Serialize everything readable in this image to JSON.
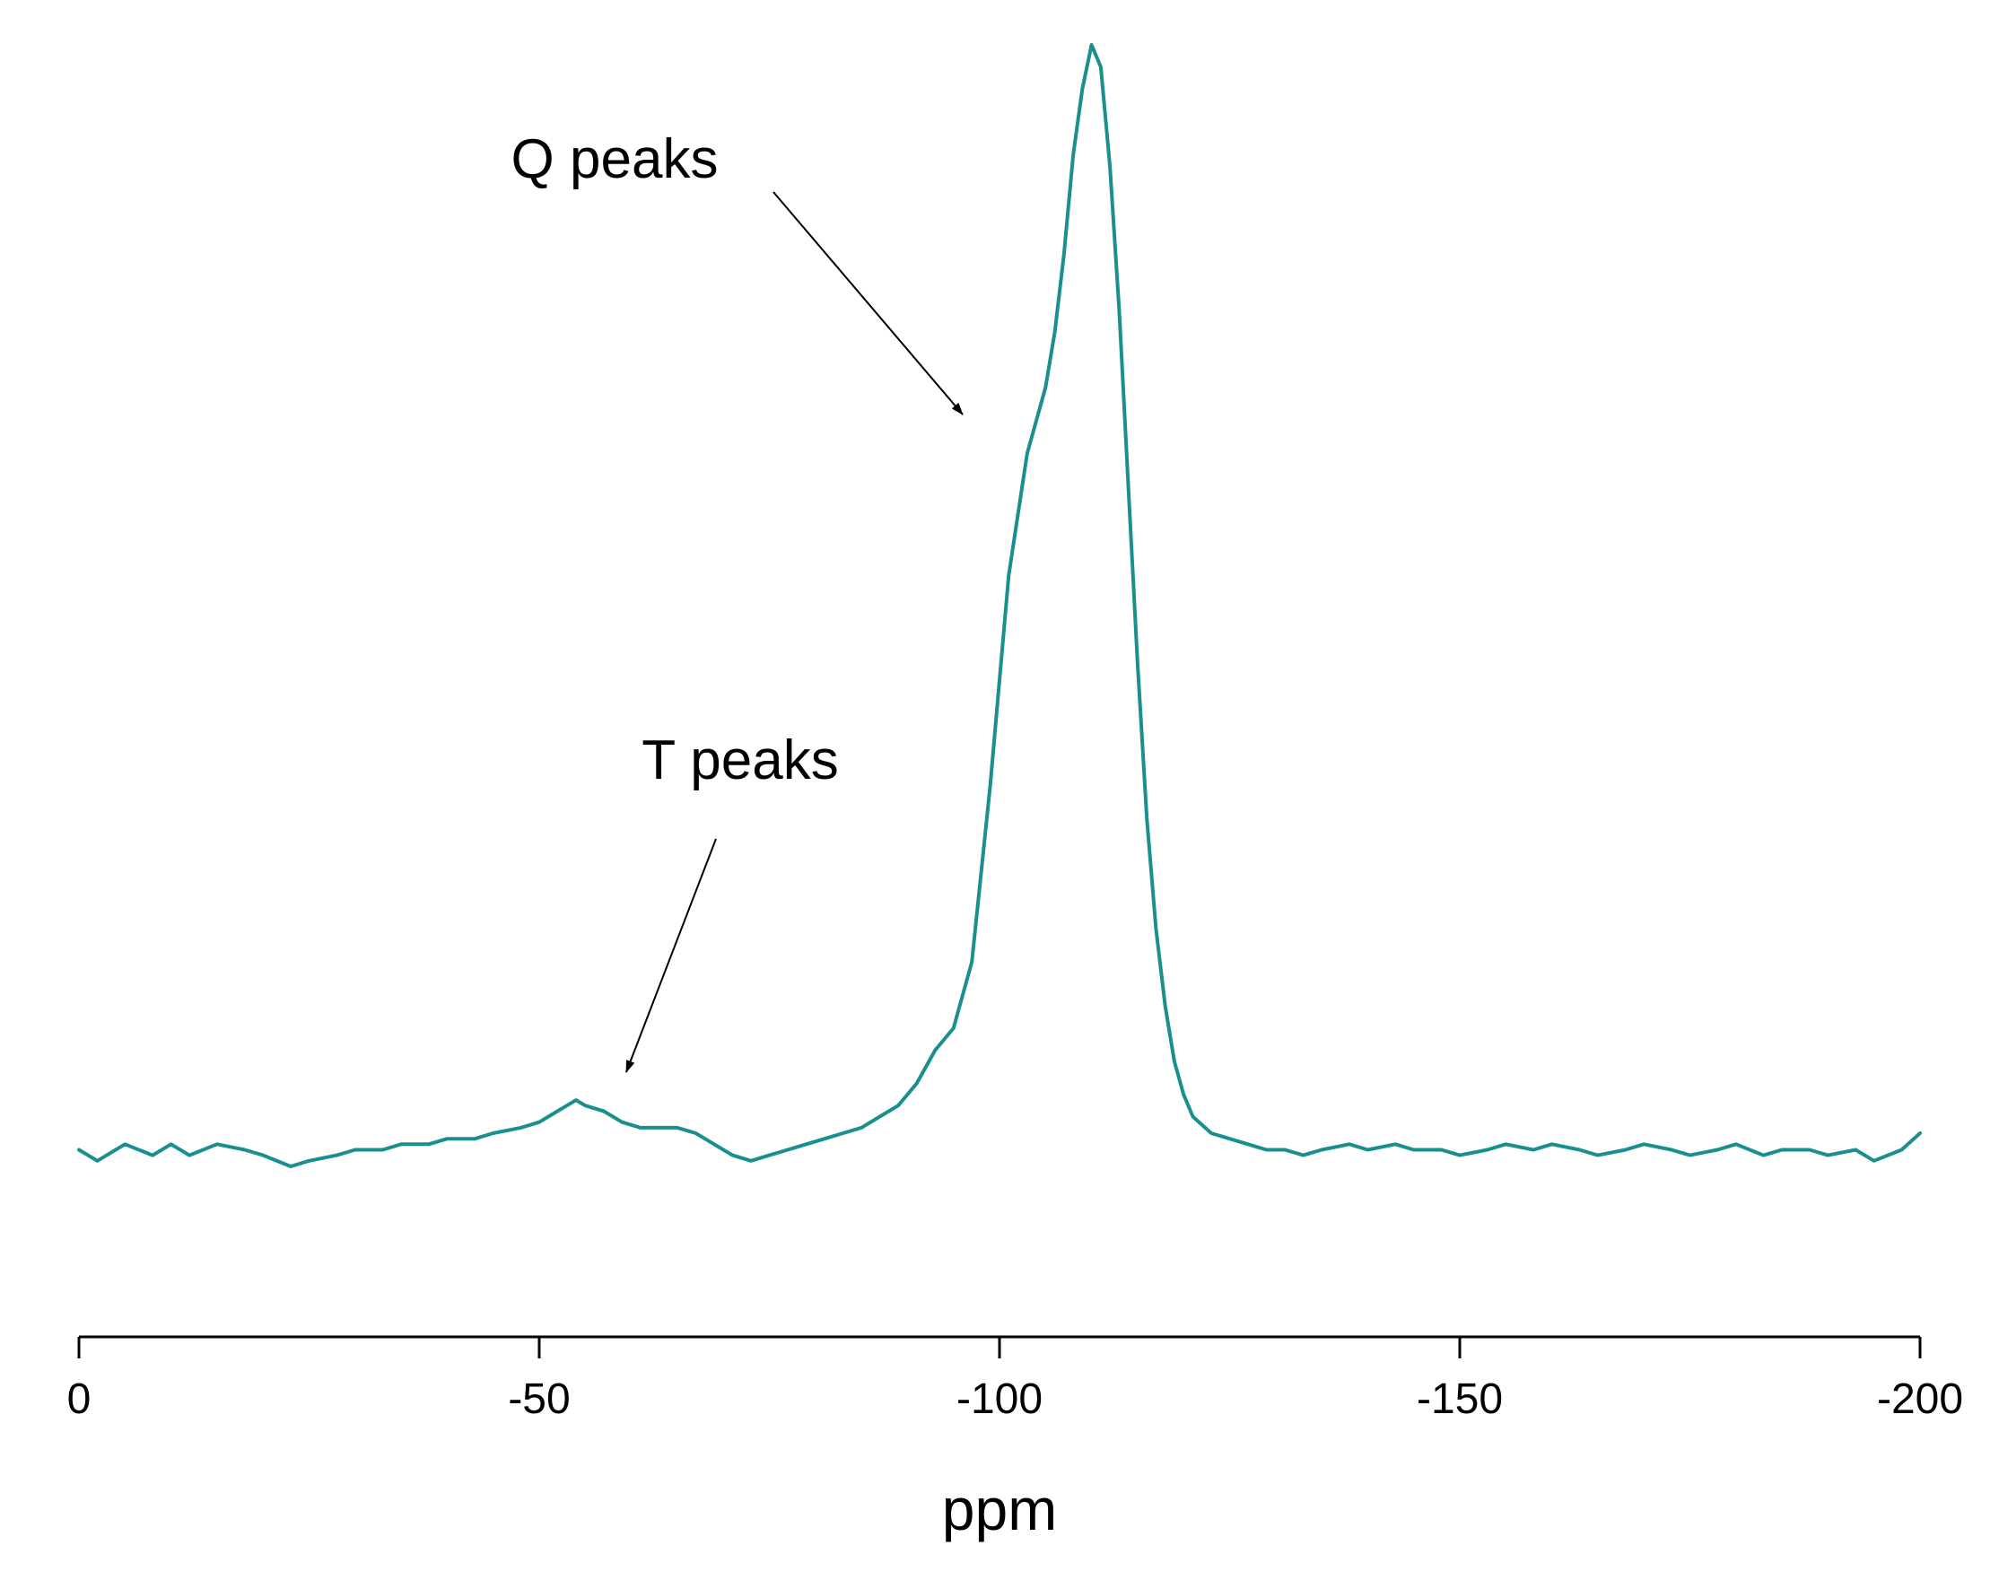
{
  "chart_data": {
    "type": "line",
    "title": "",
    "xlabel": "ppm",
    "ylabel": "",
    "xlim": [
      0,
      -200
    ],
    "x_reversed": true,
    "ylim": [
      -0.08,
      1.0
    ],
    "grid": false,
    "x_ticks": [
      0,
      -50,
      -100,
      -150,
      -200
    ],
    "x_tick_labels": [
      "0",
      "-50",
      "-100",
      "-150",
      "-200"
    ],
    "y_axis_shown": false,
    "series": [
      {
        "color": "#1a8f8f",
        "x": [
          0,
          -2,
          -5,
          -8,
          -10,
          -12,
          -15,
          -18,
          -20,
          -23,
          -25,
          -28,
          -30,
          -33,
          -35,
          -38,
          -40,
          -43,
          -45,
          -48,
          -50,
          -52,
          -54,
          -55,
          -57,
          -59,
          -61,
          -63,
          -65,
          -67,
          -69,
          -71,
          -73,
          -75,
          -77,
          -79,
          -81,
          -83,
          -85,
          -87,
          -89,
          -91,
          -93,
          -95,
          -97,
          -99,
          -101,
          -103,
          -105,
          -106,
          -107,
          -108,
          -109,
          -110,
          -111,
          -112,
          -113,
          -114,
          -115,
          -116,
          -117,
          -118,
          -119,
          -120,
          -121,
          -123,
          -125,
          -127,
          -129,
          -131,
          -133,
          -135,
          -138,
          -140,
          -143,
          -145,
          -148,
          -150,
          -153,
          -155,
          -158,
          -160,
          -163,
          -165,
          -168,
          -170,
          -173,
          -175,
          -178,
          -180,
          -183,
          -185,
          -188,
          -190,
          -193,
          -195,
          -198,
          -200
        ],
        "y": [
          0.0,
          -0.01,
          0.005,
          -0.005,
          0.005,
          -0.005,
          0.005,
          0.0,
          -0.005,
          -0.015,
          -0.01,
          -0.005,
          0.0,
          0.0,
          0.005,
          0.005,
          0.01,
          0.01,
          0.015,
          0.02,
          0.025,
          0.035,
          0.045,
          0.04,
          0.035,
          0.025,
          0.02,
          0.02,
          0.02,
          0.015,
          0.005,
          -0.005,
          -0.01,
          -0.005,
          0.0,
          0.005,
          0.01,
          0.015,
          0.02,
          0.03,
          0.04,
          0.06,
          0.09,
          0.11,
          0.17,
          0.33,
          0.52,
          0.63,
          0.69,
          0.74,
          0.81,
          0.9,
          0.96,
          1.0,
          0.98,
          0.89,
          0.76,
          0.6,
          0.44,
          0.3,
          0.2,
          0.13,
          0.08,
          0.05,
          0.03,
          0.015,
          0.01,
          0.005,
          0.0,
          0.0,
          -0.005,
          0.0,
          0.005,
          0.0,
          0.005,
          0.0,
          0.0,
          -0.005,
          0.0,
          0.005,
          0.0,
          0.005,
          0.0,
          -0.005,
          0.0,
          0.005,
          0.0,
          -0.005,
          0.0,
          0.005,
          -0.005,
          0.0,
          0.0,
          -0.005,
          0.0,
          -0.01,
          0.0,
          0.015
        ]
      }
    ],
    "annotations": [
      {
        "text": "Q peaks",
        "arrow_to_x": -96,
        "arrow_to_y": 0.6
      },
      {
        "text": "T peaks",
        "arrow_to_x": -59,
        "arrow_to_y": 0.1
      }
    ]
  }
}
